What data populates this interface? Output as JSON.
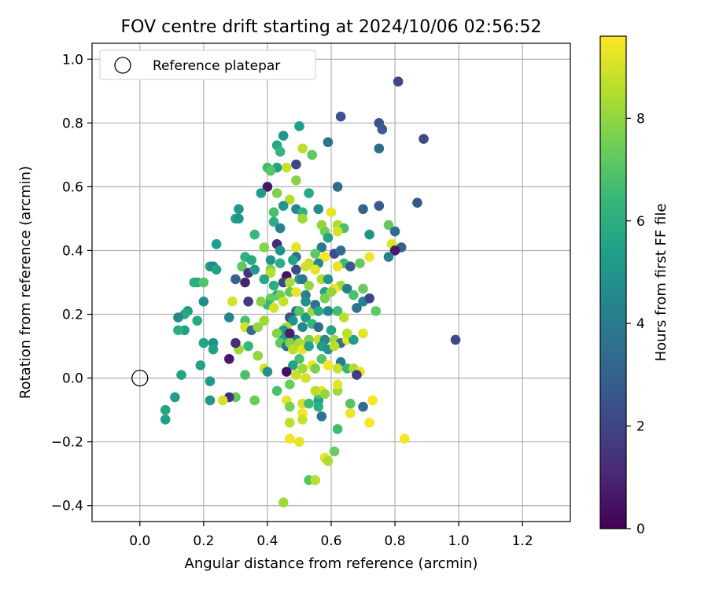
{
  "chart_data": {
    "type": "scatter",
    "title": "FOV centre drift starting at 2024/10/06 02:56:52",
    "xlabel": "Angular distance from reference (arcmin)",
    "ylabel": "Rotation from reference (arcmin)",
    "xlim": [
      -0.15,
      1.35
    ],
    "ylim": [
      -0.45,
      1.05
    ],
    "x_ticks": [
      0.0,
      0.2,
      0.4,
      0.6,
      0.8,
      1.0,
      1.2
    ],
    "x_tick_labels": [
      "0.0",
      "0.2",
      "0.4",
      "0.6",
      "0.8",
      "1.0",
      "1.2"
    ],
    "y_ticks": [
      -0.4,
      -0.2,
      0.0,
      0.2,
      0.4,
      0.6,
      0.8,
      1.0
    ],
    "y_tick_labels": [
      "−0.4",
      "−0.2",
      "0.0",
      "0.2",
      "0.4",
      "0.6",
      "0.8",
      "1.0"
    ],
    "grid": true,
    "legend": {
      "placement": "top-left",
      "entries": [
        "Reference platepar"
      ]
    },
    "reference_point": {
      "x": 0.0,
      "y": 0.0
    },
    "colorbar": {
      "label": "Hours from first FF file",
      "range": [
        0,
        9.6
      ],
      "ticks": [
        0,
        2,
        4,
        6,
        8
      ],
      "tick_labels": [
        "0",
        "2",
        "4",
        "6",
        "8"
      ],
      "colormap": "viridis",
      "stops": [
        "#440154",
        "#482878",
        "#3e4989",
        "#31688e",
        "#26828e",
        "#1f9e89",
        "#35b779",
        "#6ece58",
        "#b5de2b",
        "#fde725"
      ]
    },
    "points": [
      [
        0.81,
        0.93,
        2.0
      ],
      [
        0.63,
        0.82,
        2.5
      ],
      [
        0.75,
        0.8,
        2.5
      ],
      [
        0.76,
        0.78,
        2.8
      ],
      [
        0.89,
        0.75,
        2.2
      ],
      [
        0.75,
        0.72,
        3.4
      ],
      [
        0.5,
        0.79,
        5.4
      ],
      [
        0.45,
        0.76,
        5.0
      ],
      [
        0.43,
        0.73,
        5.7
      ],
      [
        0.44,
        0.71,
        6.3
      ],
      [
        0.59,
        0.74,
        3.6
      ],
      [
        0.51,
        0.72,
        8.6
      ],
      [
        0.54,
        0.7,
        7.2
      ],
      [
        0.49,
        0.67,
        2.0
      ],
      [
        0.46,
        0.66,
        8.8
      ],
      [
        0.43,
        0.66,
        5.5
      ],
      [
        0.4,
        0.66,
        6.6
      ],
      [
        0.41,
        0.65,
        7.1
      ],
      [
        0.49,
        0.62,
        7.8
      ],
      [
        0.4,
        0.6,
        0.6
      ],
      [
        0.62,
        0.6,
        3.2
      ],
      [
        0.38,
        0.58,
        5.3
      ],
      [
        0.43,
        0.58,
        7.7
      ],
      [
        0.53,
        0.58,
        5.8
      ],
      [
        0.47,
        0.56,
        8.5
      ],
      [
        0.45,
        0.54,
        5.0
      ],
      [
        0.87,
        0.55,
        2.6
      ],
      [
        0.75,
        0.54,
        2.8
      ],
      [
        0.49,
        0.53,
        4.4
      ],
      [
        0.51,
        0.52,
        6.2
      ],
      [
        0.56,
        0.53,
        4.6
      ],
      [
        0.42,
        0.52,
        6.8
      ],
      [
        0.6,
        0.52,
        9.3
      ],
      [
        0.31,
        0.53,
        5.1
      ],
      [
        0.7,
        0.53,
        3.0
      ],
      [
        0.42,
        0.49,
        6.0
      ],
      [
        0.51,
        0.5,
        8.2
      ],
      [
        0.3,
        0.5,
        5.5
      ],
      [
        0.31,
        0.5,
        5.0
      ],
      [
        0.57,
        0.48,
        8.0
      ],
      [
        0.62,
        0.48,
        8.4
      ],
      [
        0.64,
        0.47,
        6.8
      ],
      [
        0.44,
        0.47,
        4.2
      ],
      [
        0.58,
        0.46,
        7.5
      ],
      [
        0.62,
        0.46,
        9.0
      ],
      [
        0.59,
        0.44,
        5.6
      ],
      [
        0.72,
        0.45,
        5.0
      ],
      [
        0.36,
        0.45,
        6.5
      ],
      [
        0.78,
        0.48,
        7.3
      ],
      [
        0.8,
        0.46,
        3.4
      ],
      [
        0.82,
        0.41,
        3.0
      ],
      [
        0.79,
        0.42,
        9.1
      ],
      [
        0.8,
        0.4,
        0.7
      ],
      [
        0.78,
        0.38,
        4.2
      ],
      [
        0.24,
        0.42,
        5.3
      ],
      [
        0.43,
        0.42,
        1.2
      ],
      [
        0.49,
        0.41,
        9.2
      ],
      [
        0.57,
        0.41,
        4.0
      ],
      [
        0.49,
        0.38,
        3.6
      ],
      [
        0.55,
        0.39,
        7.2
      ],
      [
        0.61,
        0.39,
        2.2
      ],
      [
        0.63,
        0.4,
        3.4
      ],
      [
        0.58,
        0.38,
        9.5
      ],
      [
        0.44,
        0.4,
        4.8
      ],
      [
        0.39,
        0.41,
        7.8
      ],
      [
        0.33,
        0.38,
        6.2
      ],
      [
        0.35,
        0.37,
        5.8
      ],
      [
        0.41,
        0.37,
        5.0
      ],
      [
        0.44,
        0.36,
        6.0
      ],
      [
        0.48,
        0.37,
        5.6
      ],
      [
        0.53,
        0.36,
        8.8
      ],
      [
        0.56,
        0.36,
        4.5
      ],
      [
        0.64,
        0.36,
        6.6
      ],
      [
        0.62,
        0.35,
        9.3
      ],
      [
        0.66,
        0.35,
        2.8
      ],
      [
        0.69,
        0.36,
        7.3
      ],
      [
        0.72,
        0.38,
        9.4
      ],
      [
        0.22,
        0.35,
        5.4
      ],
      [
        0.23,
        0.35,
        4.5
      ],
      [
        0.24,
        0.34,
        5.5
      ],
      [
        0.32,
        0.35,
        7.2
      ],
      [
        0.34,
        0.33,
        1.4
      ],
      [
        0.36,
        0.34,
        5.2
      ],
      [
        0.41,
        0.34,
        7.6
      ],
      [
        0.46,
        0.32,
        0.5
      ],
      [
        0.49,
        0.34,
        2.2
      ],
      [
        0.52,
        0.35,
        8.9
      ],
      [
        0.55,
        0.34,
        9.2
      ],
      [
        0.57,
        0.31,
        8.5
      ],
      [
        0.59,
        0.31,
        5.0
      ],
      [
        0.63,
        0.29,
        8.2
      ],
      [
        0.61,
        0.28,
        9.4
      ],
      [
        0.65,
        0.28,
        4.0
      ],
      [
        0.45,
        0.3,
        2.0
      ],
      [
        0.41,
        0.33,
        8.6
      ],
      [
        0.39,
        0.31,
        5.7
      ],
      [
        0.3,
        0.31,
        3.0
      ],
      [
        0.33,
        0.3,
        1.0
      ],
      [
        0.42,
        0.29,
        6.0
      ],
      [
        0.47,
        0.3,
        8.4
      ],
      [
        0.5,
        0.31,
        5.5
      ],
      [
        0.51,
        0.31,
        3.8
      ],
      [
        0.53,
        0.29,
        8.0
      ],
      [
        0.47,
        0.27,
        7.2
      ],
      [
        0.49,
        0.27,
        9.3
      ],
      [
        0.52,
        0.26,
        4.2
      ],
      [
        0.58,
        0.27,
        5.6
      ],
      [
        0.6,
        0.27,
        8.0
      ],
      [
        0.43,
        0.26,
        5.8
      ],
      [
        0.41,
        0.25,
        7.3
      ],
      [
        0.44,
        0.26,
        7.6
      ],
      [
        0.45,
        0.24,
        8.8
      ],
      [
        0.4,
        0.23,
        6.4
      ],
      [
        0.38,
        0.24,
        7.8
      ],
      [
        0.42,
        0.22,
        9.0
      ],
      [
        0.34,
        0.24,
        1.6
      ],
      [
        0.29,
        0.24,
        9.0
      ],
      [
        0.2,
        0.24,
        4.7
      ],
      [
        0.18,
        0.3,
        5.6
      ],
      [
        0.17,
        0.3,
        6.0
      ],
      [
        0.2,
        0.3,
        7.0
      ],
      [
        0.15,
        0.21,
        5.2
      ],
      [
        0.14,
        0.2,
        5.8
      ],
      [
        0.12,
        0.19,
        4.6
      ],
      [
        0.14,
        0.15,
        5.4
      ],
      [
        0.18,
        0.18,
        5.8
      ],
      [
        0.12,
        0.15,
        6.0
      ],
      [
        0.28,
        0.19,
        4.4
      ],
      [
        0.33,
        0.18,
        6.8
      ],
      [
        0.33,
        0.16,
        9.0
      ],
      [
        0.35,
        0.15,
        3.4
      ],
      [
        0.37,
        0.16,
        8.0
      ],
      [
        0.49,
        0.21,
        3.4
      ],
      [
        0.52,
        0.19,
        5.2
      ],
      [
        0.54,
        0.21,
        8.2
      ],
      [
        0.59,
        0.21,
        4.4
      ],
      [
        0.62,
        0.21,
        6.6
      ],
      [
        0.64,
        0.19,
        8.6
      ],
      [
        0.68,
        0.22,
        3.6
      ],
      [
        0.7,
        0.24,
        4.2
      ],
      [
        0.72,
        0.25,
        2.0
      ],
      [
        0.74,
        0.21,
        7.2
      ],
      [
        0.7,
        0.28,
        7.4
      ],
      [
        0.67,
        0.26,
        6.8
      ],
      [
        0.58,
        0.25,
        7.6
      ],
      [
        0.52,
        0.24,
        4.8
      ],
      [
        0.55,
        0.23,
        3.6
      ],
      [
        0.56,
        0.21,
        5.8
      ],
      [
        0.5,
        0.21,
        7.0
      ],
      [
        0.47,
        0.19,
        2.4
      ],
      [
        0.48,
        0.18,
        5.0
      ],
      [
        0.46,
        0.16,
        8.4
      ],
      [
        0.45,
        0.15,
        5.2
      ],
      [
        0.43,
        0.14,
        7.8
      ],
      [
        0.45,
        0.12,
        5.4
      ],
      [
        0.44,
        0.11,
        7.2
      ],
      [
        0.49,
        0.12,
        4.0
      ],
      [
        0.51,
        0.1,
        9.4
      ],
      [
        0.53,
        0.12,
        7.6
      ],
      [
        0.56,
        0.12,
        8.8
      ],
      [
        0.58,
        0.12,
        4.4
      ],
      [
        0.61,
        0.12,
        8.2
      ],
      [
        0.63,
        0.11,
        3.6
      ],
      [
        0.65,
        0.12,
        9.3
      ],
      [
        0.67,
        0.12,
        5.4
      ],
      [
        0.7,
        0.14,
        9.2
      ],
      [
        0.47,
        0.14,
        0.8
      ],
      [
        0.51,
        0.16,
        4.6
      ],
      [
        0.54,
        0.17,
        6.4
      ],
      [
        0.56,
        0.16,
        3.4
      ],
      [
        0.6,
        0.15,
        5.6
      ],
      [
        0.65,
        0.14,
        8.6
      ],
      [
        0.39,
        0.18,
        8.2
      ],
      [
        0.31,
        0.09,
        8.2
      ],
      [
        0.28,
        0.06,
        0.6
      ],
      [
        0.2,
        0.11,
        5.6
      ],
      [
        0.23,
        0.11,
        5.0
      ],
      [
        0.23,
        0.09,
        5.4
      ],
      [
        0.19,
        0.04,
        5.5
      ],
      [
        0.13,
        0.01,
        5.6
      ],
      [
        0.3,
        0.11,
        1.2
      ],
      [
        0.34,
        0.1,
        6.4
      ],
      [
        0.37,
        0.07,
        8.0
      ],
      [
        0.39,
        0.03,
        9.0
      ],
      [
        0.4,
        0.02,
        4.8
      ],
      [
        0.46,
        0.1,
        3.6
      ],
      [
        0.47,
        0.11,
        7.8
      ],
      [
        0.48,
        0.09,
        8.6
      ],
      [
        0.5,
        0.11,
        8.4
      ],
      [
        0.51,
        0.09,
        9.2
      ],
      [
        0.53,
        0.1,
        5.6
      ],
      [
        0.57,
        0.1,
        5.4
      ],
      [
        0.59,
        0.09,
        4.8
      ],
      [
        0.61,
        0.1,
        8.6
      ],
      [
        0.63,
        0.05,
        4.0
      ],
      [
        0.57,
        0.06,
        7.0
      ],
      [
        0.59,
        0.04,
        9.4
      ],
      [
        0.62,
        0.03,
        8.8
      ],
      [
        0.65,
        0.03,
        6.4
      ],
      [
        0.67,
        0.03,
        8.4
      ],
      [
        0.69,
        0.02,
        9.3
      ],
      [
        0.68,
        0.01,
        1.8
      ],
      [
        0.5,
        0.06,
        6.8
      ],
      [
        0.48,
        0.04,
        5.6
      ],
      [
        0.46,
        0.02,
        0.4
      ],
      [
        0.49,
        0.01,
        8.8
      ],
      [
        0.51,
        0.03,
        8.2
      ],
      [
        0.52,
        0.0,
        9.0
      ],
      [
        0.54,
        0.04,
        9.4
      ],
      [
        0.55,
        0.03,
        7.6
      ],
      [
        0.47,
        -0.02,
        7.4
      ],
      [
        0.43,
        -0.04,
        6.8
      ],
      [
        0.33,
        0.01,
        6.8
      ],
      [
        0.36,
        -0.07,
        7.4
      ],
      [
        0.3,
        -0.06,
        7.2
      ],
      [
        0.28,
        -0.06,
        1.4
      ],
      [
        0.26,
        -0.07,
        9.0
      ],
      [
        0.22,
        -0.01,
        5.2
      ],
      [
        0.22,
        -0.07,
        5.0
      ],
      [
        0.11,
        -0.06,
        5.3
      ],
      [
        0.08,
        -0.1,
        5.6
      ],
      [
        0.08,
        -0.13,
        5.4
      ],
      [
        0.46,
        -0.07,
        9.3
      ],
      [
        0.47,
        -0.09,
        7.6
      ],
      [
        0.51,
        -0.08,
        9.0
      ],
      [
        0.53,
        -0.08,
        6.6
      ],
      [
        0.56,
        -0.07,
        5.4
      ],
      [
        0.56,
        -0.05,
        6.8
      ],
      [
        0.57,
        -0.04,
        9.3
      ],
      [
        0.55,
        -0.04,
        8.6
      ],
      [
        0.58,
        -0.05,
        8.0
      ],
      [
        0.62,
        -0.04,
        8.2
      ],
      [
        0.62,
        -0.02,
        9.2
      ],
      [
        0.66,
        -0.08,
        7.0
      ],
      [
        0.7,
        -0.09,
        3.4
      ],
      [
        0.73,
        -0.07,
        9.5
      ],
      [
        0.56,
        -0.09,
        6.0
      ],
      [
        0.57,
        -0.12,
        3.6
      ],
      [
        0.51,
        -0.11,
        9.5
      ],
      [
        0.51,
        -0.13,
        8.8
      ],
      [
        0.47,
        -0.14,
        8.6
      ],
      [
        0.47,
        -0.19,
        9.4
      ],
      [
        0.5,
        -0.2,
        9.2
      ],
      [
        0.62,
        -0.16,
        6.6
      ],
      [
        0.66,
        -0.11,
        9.3
      ],
      [
        0.72,
        -0.14,
        9.5
      ],
      [
        0.83,
        -0.19,
        9.5
      ],
      [
        0.61,
        -0.23,
        7.4
      ],
      [
        0.58,
        -0.25,
        9.2
      ],
      [
        0.59,
        -0.26,
        8.4
      ],
      [
        0.53,
        -0.32,
        7.0
      ],
      [
        0.55,
        -0.32,
        8.6
      ],
      [
        0.45,
        -0.39,
        8.2
      ],
      [
        0.99,
        0.12,
        2.0
      ]
    ]
  }
}
